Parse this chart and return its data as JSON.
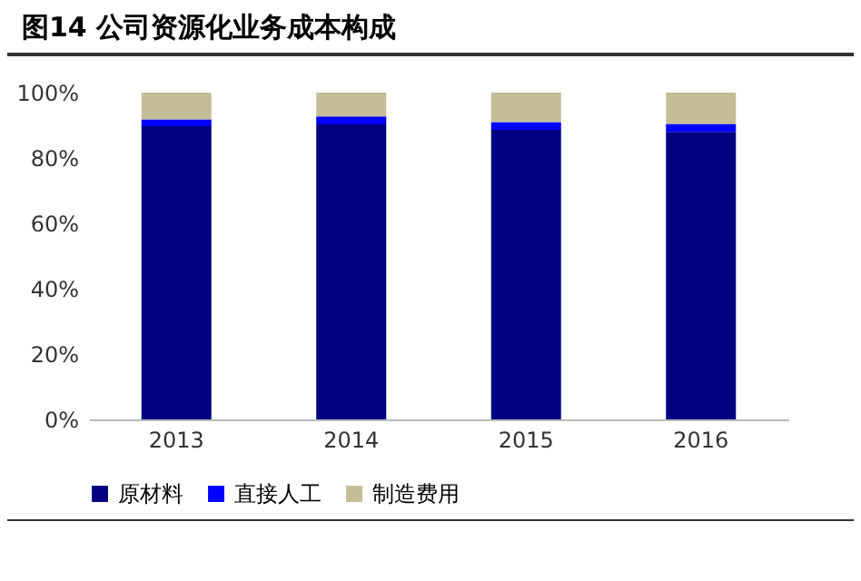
{
  "chart_data": {
    "type": "bar",
    "title": "图14 公司资源化业务成本构成",
    "stacked": true,
    "categories": [
      "2013",
      "2014",
      "2015",
      "2016"
    ],
    "series": [
      {
        "name": "原材料",
        "color": "#000080",
        "values": [
          89.7,
          90.3,
          88.6,
          88.0
        ]
      },
      {
        "name": "直接人工",
        "color": "#0000ff",
        "values": [
          2.1,
          2.4,
          2.4,
          2.4
        ]
      },
      {
        "name": "制造费用",
        "color": "#c4bd97",
        "values": [
          8.2,
          7.3,
          9.0,
          9.6
        ]
      }
    ],
    "ylim": [
      0,
      100
    ],
    "yticks": [
      {
        "value": 0,
        "label": "0%"
      },
      {
        "value": 20,
        "label": "20%"
      },
      {
        "value": 40,
        "label": "40%"
      },
      {
        "value": 60,
        "label": "60%"
      },
      {
        "value": 80,
        "label": "80%"
      },
      {
        "value": 100,
        "label": "100%"
      }
    ],
    "grid": false,
    "legend": "bottom"
  }
}
